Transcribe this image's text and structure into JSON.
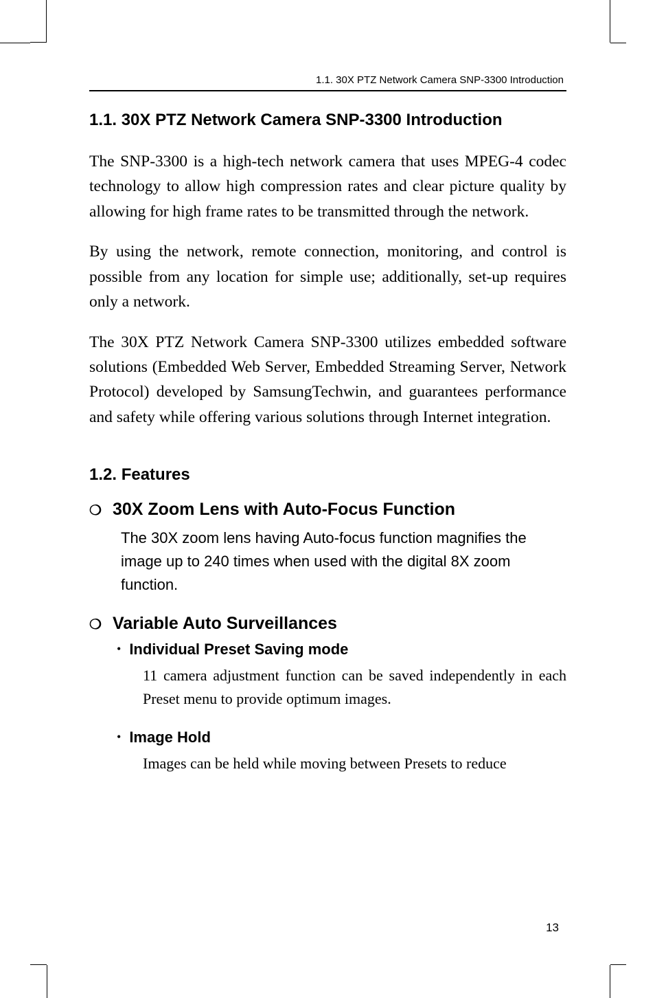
{
  "header": {
    "running_head": "1.1. 30X PTZ Network Camera SNP-3300 Introduction"
  },
  "section1": {
    "title": "1.1. 30X PTZ Network Camera SNP-3300 Introduction",
    "para1": "The SNP-3300 is a high-tech network camera that uses MPEG-4 codec technology to allow high compression rates and clear picture quality by allowing for high frame rates to be transmitted through the network.",
    "para2": "By using the network, remote connection, monitoring, and control is possible from any location for simple use; additionally, set-up requires only a network.",
    "para3": "The 30X PTZ Network Camera SNP-3300 utilizes embedded software solutions (Embedded Web Server, Embedded Streaming Server, Network Protocol) developed by SamsungTechwin, and guarantees performance and safety while offering various solutions through Internet integration."
  },
  "section2": {
    "title": "1.2. Features",
    "feature1": {
      "title": "30X Zoom Lens with Auto-Focus Function",
      "body": "The 30X zoom lens having Auto-focus function magnifies the image up to 240 times when used with the digital 8X zoom function."
    },
    "feature2": {
      "title": "Variable Auto Surveillances",
      "sub1": {
        "title": "Individual Preset Saving mode",
        "body": "11 camera adjustment function can be saved independently in each Preset menu to provide optimum images."
      },
      "sub2": {
        "title": "Image Hold",
        "body": "Images can be held while moving between Presets to reduce"
      }
    }
  },
  "page_number": "13",
  "bullets": {
    "circle": "❍",
    "dot": "•"
  }
}
